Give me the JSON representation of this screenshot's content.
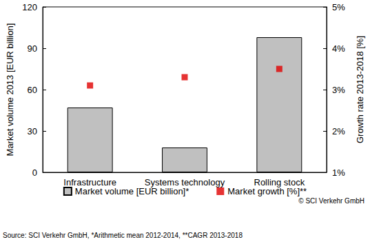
{
  "chart_data": {
    "type": "bar",
    "categories": [
      "Infrastructure",
      "Systems technology",
      "Rolling stock"
    ],
    "series": [
      {
        "name": "Market volume [EUR billion]*",
        "type": "bar",
        "color": "#c0c0c0",
        "values": [
          47,
          18,
          98
        ]
      },
      {
        "name": "Market growth [%]**",
        "type": "scatter",
        "axis": "y2",
        "marker": "square",
        "color": "#e00000",
        "values": [
          3.1,
          3.3,
          3.5
        ]
      }
    ],
    "y_label": "Market volume 2013 [EUR billion]",
    "y2_label": "Growth rate 2013-2018 [%]",
    "ylim": [
      0,
      120
    ],
    "yticks": [
      0,
      30,
      60,
      90,
      120
    ],
    "y2lim": [
      1,
      5
    ],
    "y2ticks": [
      {
        "value": 1,
        "label": "1%"
      },
      {
        "value": 2,
        "label": "2%"
      },
      {
        "value": 3,
        "label": "3%"
      },
      {
        "value": 4,
        "label": "4%"
      },
      {
        "value": 5,
        "label": "5%"
      }
    ],
    "grid": false,
    "legend": "bottom",
    "data_labels": false,
    "annotations": [
      "© SCI Verkehr GmbH",
      "Source: SCI Verkehr GmbH, *Arithmetic mean 2012-2014, **CAGR 2013-2018"
    ]
  }
}
